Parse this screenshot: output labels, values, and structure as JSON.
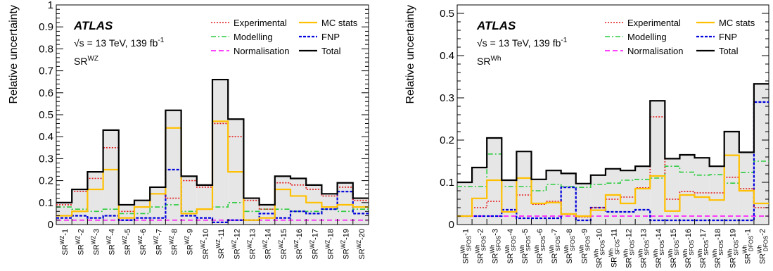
{
  "legend_labels": {
    "experimental": "Experimental",
    "mc_stats": "MC stats",
    "modelling": "Modelling",
    "fnp": "FNP",
    "normalisation": "Normalisation",
    "total": "Total"
  },
  "colors": {
    "experimental": "#e41a1c",
    "mc_stats": "#ffc000",
    "modelling": "#2ecc40",
    "fnp": "#0000dd",
    "normalisation": "#ff00ff",
    "total": "#000000",
    "fill": "#e6e6e6"
  },
  "chart_data": [
    {
      "type": "bar",
      "id": "wz",
      "ylabel": "Relative uncertainty",
      "ylim": [
        0,
        1
      ],
      "yticks": [
        0,
        0.1,
        0.2,
        0.3,
        0.4,
        0.5,
        0.6,
        0.7,
        0.8,
        0.9,
        1
      ],
      "ytick_labels": [
        "0",
        "0.1",
        "0.2",
        "0.3",
        "0.4",
        "0.5",
        "0.6",
        "0.7",
        "0.8",
        "0.9",
        "1"
      ],
      "atlas": "ATLAS",
      "energy": "√s = 13 TeV, 139 fb",
      "energy_sup": "-1",
      "region": "SR",
      "region_sup": "WZ",
      "categories": [
        "SR^{WZ}-1",
        "SR^{WZ}-2",
        "SR^{WZ}-3",
        "SR^{WZ}-4",
        "SR^{WZ}-5",
        "SR^{WZ}-6",
        "SR^{WZ}-7",
        "SR^{WZ}-8",
        "SR^{WZ}-9",
        "SR^{WZ}-10",
        "SR^{WZ}-11",
        "SR^{WZ}-12",
        "SR^{WZ}-13",
        "SR^{WZ}-14",
        "SR^{WZ}-15",
        "SR^{WZ}-16",
        "SR^{WZ}-17",
        "SR^{WZ}-18",
        "SR^{WZ}-19",
        "SR^{WZ}-20"
      ],
      "series": [
        {
          "key": "total",
          "values": [
            0.1,
            0.16,
            0.24,
            0.43,
            0.09,
            0.11,
            0.17,
            0.52,
            0.22,
            0.18,
            0.66,
            0.48,
            0.12,
            0.09,
            0.22,
            0.21,
            0.18,
            0.14,
            0.19,
            0.12
          ]
        },
        {
          "key": "experimental",
          "values": [
            0.09,
            0.15,
            0.21,
            0.35,
            0.06,
            0.08,
            0.14,
            0.12,
            0.2,
            0.17,
            0.46,
            0.4,
            0.11,
            0.07,
            0.19,
            0.18,
            0.16,
            0.13,
            0.17,
            0.11
          ]
        },
        {
          "key": "mc_stats",
          "values": [
            0.04,
            0.06,
            0.16,
            0.25,
            0.03,
            0.08,
            0.14,
            0.44,
            0.05,
            0.07,
            0.47,
            0.24,
            0.02,
            0.03,
            0.16,
            0.13,
            0.1,
            0.08,
            0.09,
            0.08
          ]
        },
        {
          "key": "modelling",
          "values": [
            0.08,
            0.07,
            0.06,
            0.07,
            0.05,
            0.05,
            0.08,
            0.09,
            0.06,
            0.07,
            0.08,
            0.1,
            0.06,
            0.07,
            0.07,
            0.06,
            0.06,
            0.07,
            0.06,
            0.07
          ]
        },
        {
          "key": "fnp",
          "values": [
            0.03,
            0.04,
            0.03,
            0.04,
            0.02,
            0.03,
            0.03,
            0.25,
            0.04,
            0.03,
            0.01,
            0.02,
            0.02,
            0.05,
            0.03,
            0.06,
            0.05,
            0.07,
            0.15,
            0.05
          ]
        },
        {
          "key": "normalisation",
          "values": [
            0.02,
            0.02,
            0.02,
            0.02,
            0.02,
            0.02,
            0.02,
            0.02,
            0.02,
            0.02,
            0.02,
            0.02,
            0.02,
            0.02,
            0.02,
            0.02,
            0.02,
            0.02,
            0.02,
            0.02
          ]
        }
      ]
    },
    {
      "type": "bar",
      "id": "wh",
      "ylabel": "Relative uncertainty",
      "ylim": [
        0,
        0.52
      ],
      "yticks": [
        0,
        0.1,
        0.2,
        0.3,
        0.4,
        0.5
      ],
      "ytick_labels": [
        "0",
        "0.1",
        "0.2",
        "0.3",
        "0.4",
        "0.5"
      ],
      "atlas": "ATLAS",
      "energy": "√s = 13 TeV, 139 fb",
      "energy_sup": "-1",
      "region": "SR",
      "region_sup": "Wh",
      "categories": [
        "SR^{Wh}_{SFOS}-1",
        "SR^{Wh}_{SFOS}-2",
        "SR^{Wh}_{SFOS}-3",
        "SR^{Wh}_{SFOS}-4",
        "SR^{Wh}_{SFOS}-5",
        "SR^{Wh}_{SFOS}-6",
        "SR^{Wh}_{SFOS}-7",
        "SR^{Wh}_{SFOS}-8",
        "SR^{Wh}_{SFOS}-9",
        "SR^{Wh}_{SFOS}-10",
        "SR^{Wh}_{SFOS}-11",
        "SR^{Wh}_{SFOS}-12",
        "SR^{Wh}_{SFOS}-13",
        "SR^{Wh}_{SFOS}-14",
        "SR^{Wh}_{SFOS}-15",
        "SR^{Wh}_{SFOS}-16",
        "SR^{Wh}_{SFOS}-17",
        "SR^{Wh}_{SFOS}-18",
        "SR^{Wh}_{SFOS}-19",
        "SR^{Wh}_{DFOS}-1",
        "SR^{Wh}_{DFOS}-2"
      ],
      "series": [
        {
          "key": "total",
          "values": [
            0.1,
            0.135,
            0.205,
            0.105,
            0.173,
            0.107,
            0.128,
            0.121,
            0.097,
            0.117,
            0.132,
            0.128,
            0.138,
            0.293,
            0.156,
            0.165,
            0.158,
            0.138,
            0.22,
            0.171,
            0.333
          ]
        },
        {
          "key": "experimental",
          "values": [
            0.02,
            0.04,
            0.055,
            0.03,
            0.07,
            0.048,
            0.055,
            0.024,
            0.018,
            0.04,
            0.06,
            0.065,
            0.087,
            0.255,
            0.06,
            0.078,
            0.075,
            0.075,
            0.112,
            0.085,
            0.04
          ]
        },
        {
          "key": "mc_stats",
          "values": [
            0.02,
            0.062,
            0.105,
            0.03,
            0.11,
            0.05,
            0.052,
            0.025,
            0.02,
            0.034,
            0.07,
            0.05,
            0.085,
            0.115,
            0.032,
            0.07,
            0.065,
            0.058,
            0.164,
            0.08,
            0.05
          ]
        },
        {
          "key": "modelling",
          "values": [
            0.09,
            0.09,
            0.167,
            0.09,
            0.09,
            0.08,
            0.095,
            0.09,
            0.088,
            0.095,
            0.098,
            0.105,
            0.107,
            0.11,
            0.138,
            0.124,
            0.117,
            0.118,
            0.098,
            0.123,
            0.15
          ]
        },
        {
          "key": "fnp",
          "values": [
            0.02,
            0.02,
            0.02,
            0.035,
            0.015,
            0.015,
            0.015,
            0.088,
            0.01,
            0.04,
            0.03,
            0.03,
            0.035,
            0.01,
            0.01,
            0.01,
            0.01,
            0.01,
            0.01,
            0.01,
            0.29
          ]
        },
        {
          "key": "normalisation",
          "values": [
            0.02,
            0.02,
            0.02,
            0.02,
            0.02,
            0.02,
            0.02,
            0.02,
            0.02,
            0.02,
            0.02,
            0.02,
            0.02,
            0.02,
            0.02,
            0.02,
            0.02,
            0.02,
            0.02,
            0.02,
            0.02
          ]
        }
      ]
    }
  ]
}
